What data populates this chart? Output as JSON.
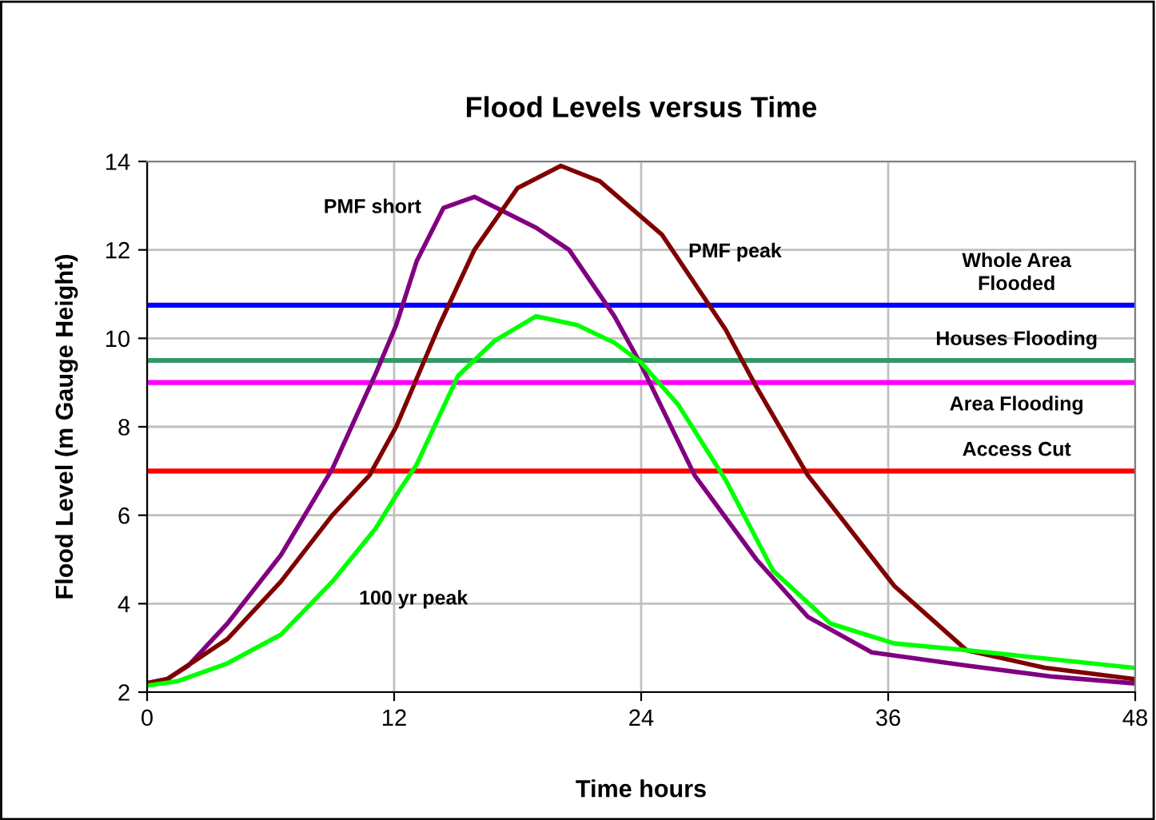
{
  "chart_data": {
    "type": "line",
    "title": "Flood Levels versus Time",
    "xlabel": "Time hours",
    "ylabel": "Flood Level (m Gauge Height)",
    "xlim": [
      0,
      48
    ],
    "xticks": [
      0,
      12,
      24,
      36,
      48
    ],
    "ylim": [
      2,
      14
    ],
    "yticks": [
      2,
      4,
      6,
      8,
      10,
      12,
      14
    ],
    "grid": true,
    "line_style": "solid",
    "series": [
      {
        "color": "#800080",
        "x": [
          0,
          1,
          2,
          3.9,
          6.5,
          9.0,
          11.1,
          12.1,
          13.1,
          14.4,
          15.9,
          18.9,
          20.5,
          22.7,
          24.0,
          26.6,
          29.6,
          32.1,
          35.2,
          39.8,
          44,
          47.9
        ],
        "values": [
          2.2,
          2.3,
          2.6,
          3.55,
          5.1,
          7.05,
          9.2,
          10.3,
          11.75,
          12.95,
          13.2,
          12.5,
          12.0,
          10.5,
          9.4,
          6.9,
          5.0,
          3.7,
          2.9,
          2.6,
          2.35,
          2.2
        ]
      },
      {
        "color": "#800000",
        "x": [
          0,
          1,
          3.9,
          6.5,
          9.0,
          10.8,
          12.1,
          14.2,
          15.9,
          18.0,
          20.1,
          22.0,
          25.0,
          28.1,
          29.6,
          32.1,
          36.3,
          39.8,
          43.6,
          47.9
        ],
        "values": [
          2.2,
          2.3,
          3.2,
          4.5,
          6.0,
          6.9,
          8.0,
          10.3,
          12.0,
          13.4,
          13.9,
          13.55,
          12.35,
          10.2,
          8.9,
          6.9,
          4.4,
          2.95,
          2.55,
          2.3
        ]
      },
      {
        "color": "#00ff00",
        "x": [
          0,
          1.5,
          3.9,
          6.5,
          9.0,
          11.1,
          12.1,
          13.1,
          14.2,
          15.1,
          16.9,
          18.9,
          20.9,
          22.7,
          24.0,
          25.8,
          28.1,
          30.4,
          33.2,
          36.3,
          39.8,
          47.9
        ],
        "values": [
          2.15,
          2.25,
          2.65,
          3.3,
          4.5,
          5.7,
          6.45,
          7.15,
          8.25,
          9.15,
          9.95,
          10.5,
          10.3,
          9.9,
          9.45,
          8.5,
          6.8,
          4.75,
          3.55,
          3.1,
          2.95,
          2.55
        ]
      }
    ],
    "ref_lines": [
      {
        "axis": "y",
        "value": 10.75,
        "label": "Whole Area\nFlooded",
        "color": "#0000ff"
      },
      {
        "axis": "y",
        "value": 9.5,
        "label": "Houses Flooding",
        "color": "#339966"
      },
      {
        "axis": "y",
        "value": 9,
        "label": "Area Flooding",
        "color": "#ff00ff"
      },
      {
        "axis": "y",
        "value": 7,
        "label": "Access Cut",
        "color": "#ff0000"
      }
    ],
    "annotations": [
      {
        "text": "PMF short",
        "x": 14.4,
        "y": 12.95
      },
      {
        "text": "PMF peak",
        "x": 25.0,
        "y": 12.35
      },
      {
        "text": "100 yr peak",
        "x": 9.0,
        "y": 4.5
      }
    ]
  }
}
